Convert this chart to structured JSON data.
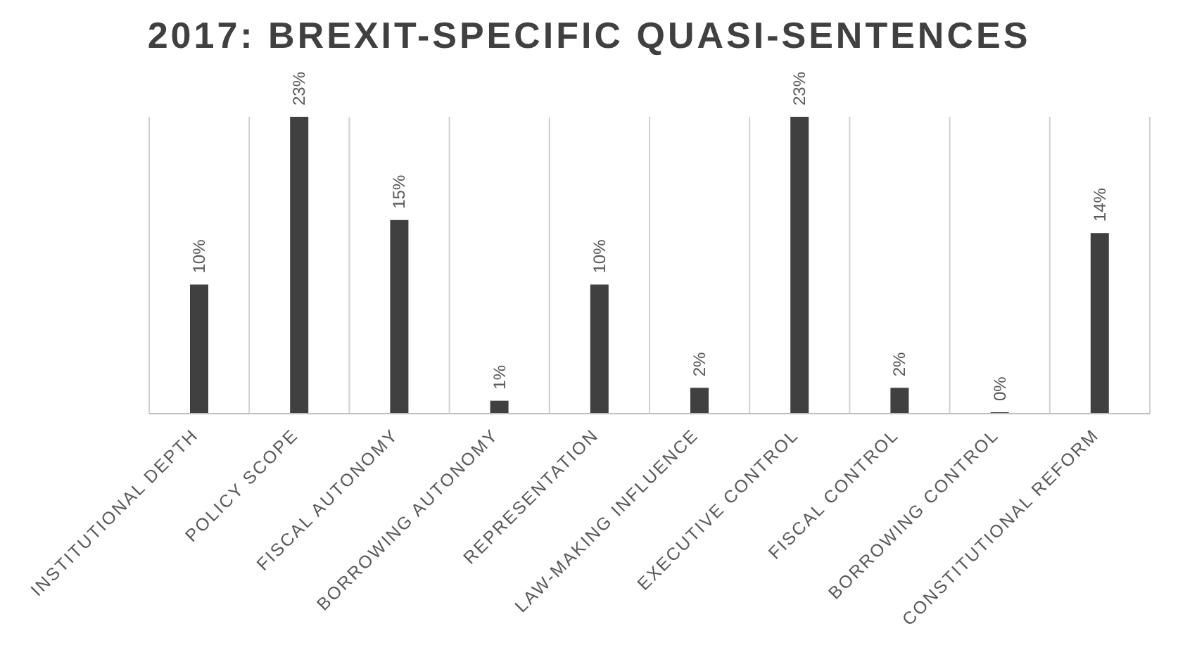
{
  "chart_data": {
    "type": "bar",
    "title": "2017: BREXIT-SPECIFIC QUASI-SENTENCES",
    "categories": [
      "INSTITUTIONAL DEPTH",
      "POLICY SCOPE",
      "FISCAL AUTONOMY",
      "BORROWING AUTONOMY",
      "REPRESENTATION",
      "LAW-MAKING INFLUENCE",
      "EXECUTIVE CONTROL",
      "FISCAL CONTROL",
      "BORROWING CONTROL",
      "CONSTITUTIONAL REFORM"
    ],
    "values": [
      10,
      23,
      15,
      1,
      10,
      2,
      23,
      2,
      0,
      14
    ],
    "value_labels": [
      "10%",
      "23%",
      "15%",
      "1%",
      "10%",
      "2%",
      "23%",
      "2%",
      "0%",
      "14%"
    ],
    "color": "#404040",
    "grid": "x",
    "legend": false
  }
}
